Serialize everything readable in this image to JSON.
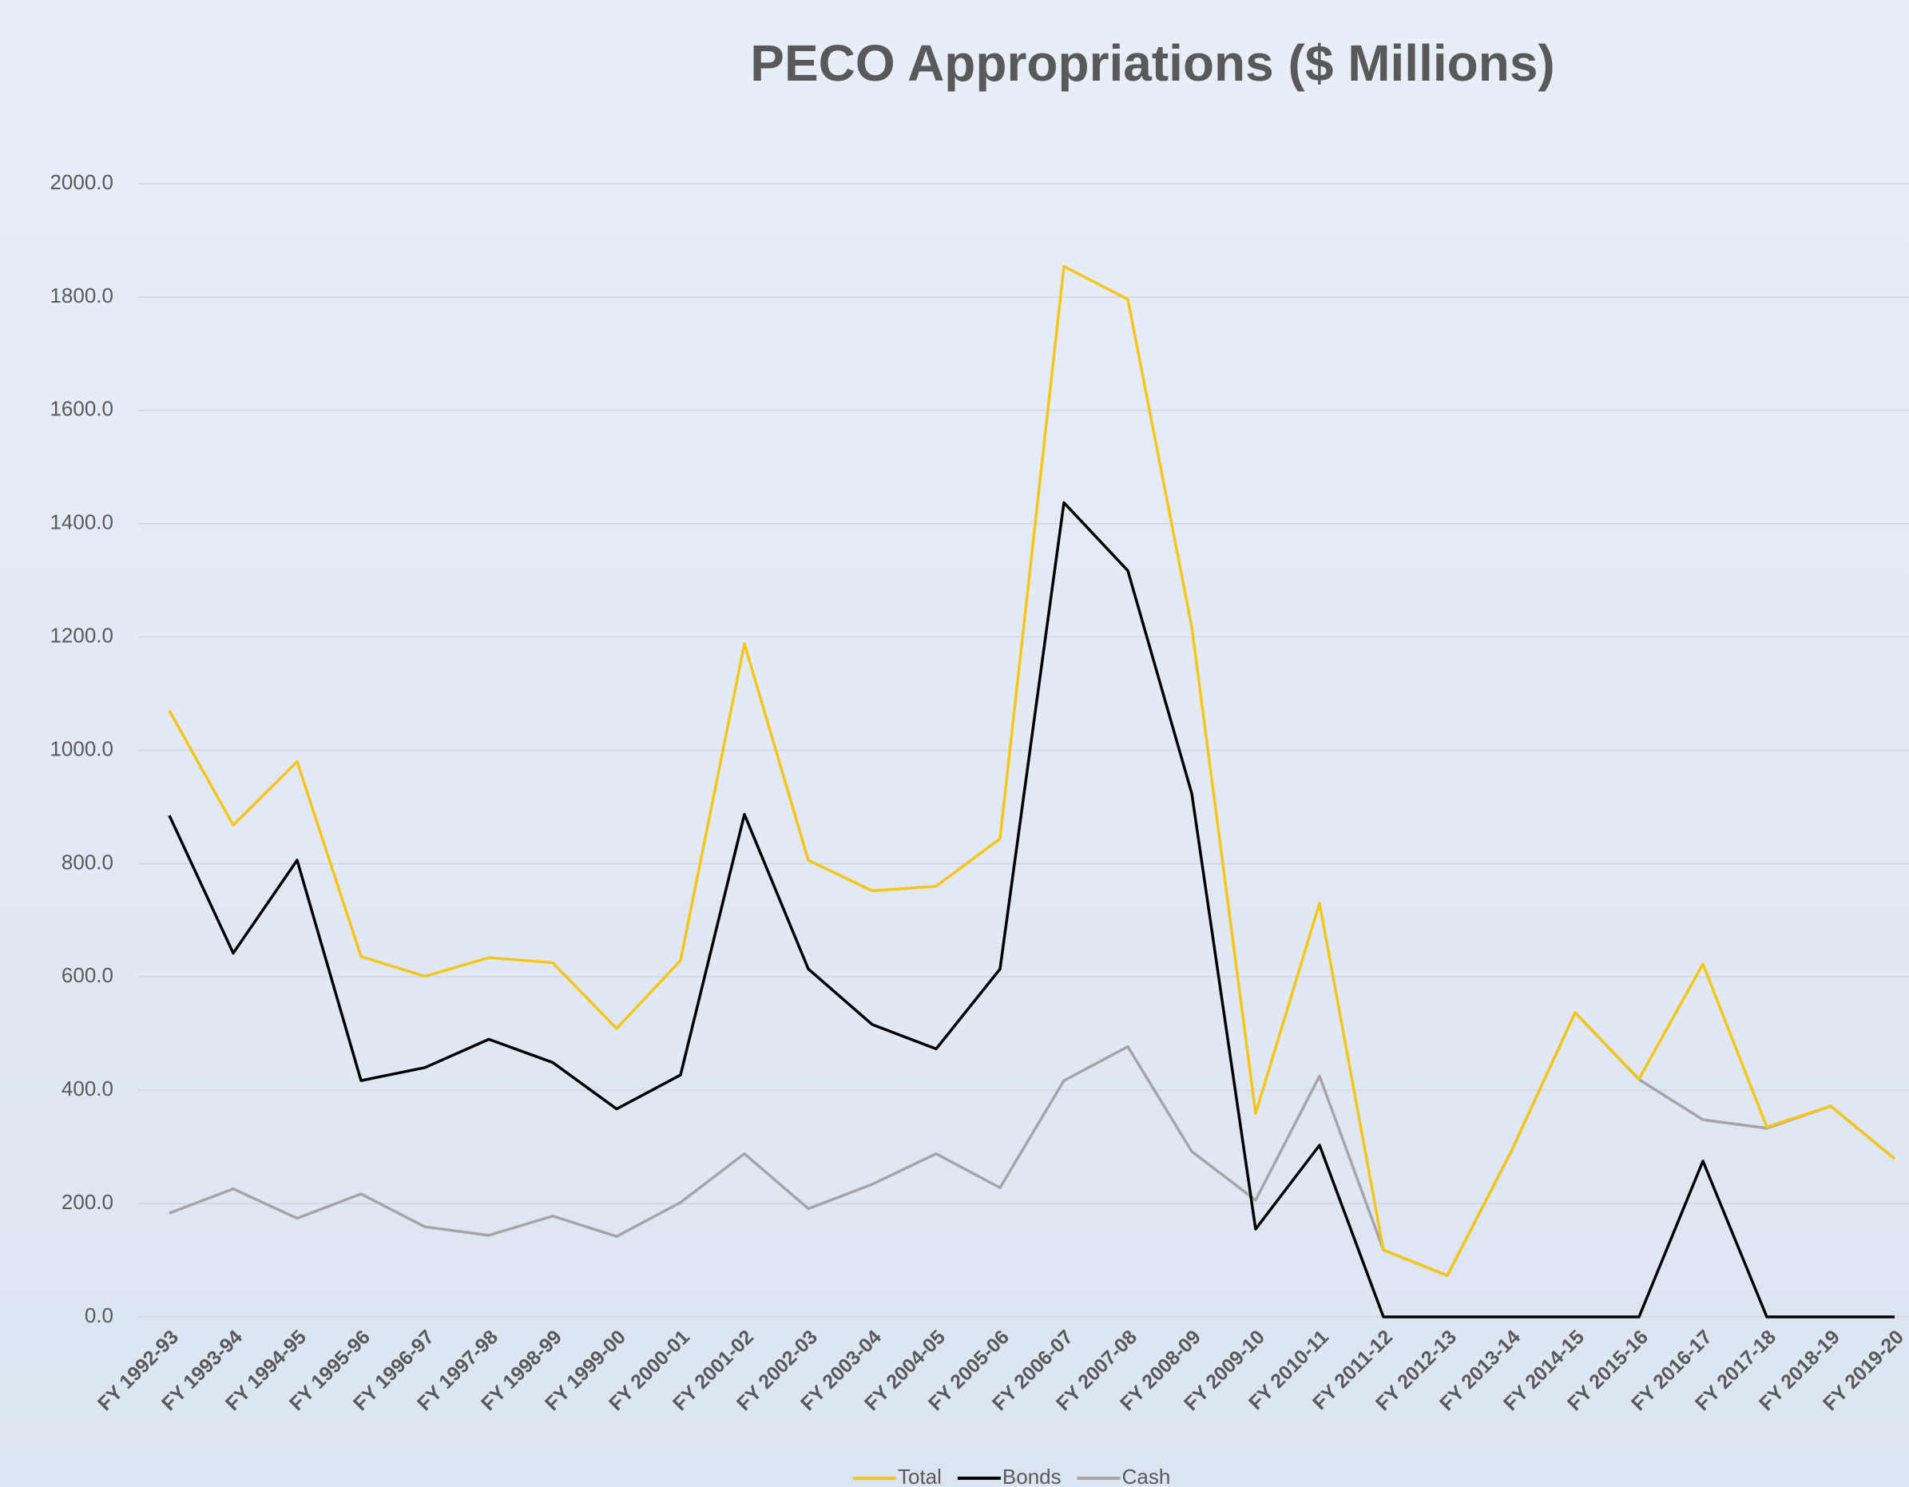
{
  "chart_data": {
    "type": "line",
    "title": "PECO Appropriations ($ Millions)",
    "categories": [
      "FY 1992-93",
      "FY 1993-94",
      "FY 1994-95",
      "FY 1995-96",
      "FY 1996-97",
      "FY 1997-98",
      "FY 1998-99",
      "FY 1999-00",
      "FY 2000-01",
      "FY 2001-02",
      "FY 2002-03",
      "FY 2003-04",
      "FY 2004-05",
      "FY 2005-06",
      "FY 2006-07",
      "FY 2007-08",
      "FY 2008-09",
      "FY 2009-10",
      "FY 2010-11",
      "FY 2011-12",
      "FY 2012-13",
      "FY 2013-14",
      "FY 2014-15",
      "FY 2015-16",
      "FY 2016-17",
      "FY 2017-18",
      "FY 2018-19",
      "FY 2019-20"
    ],
    "series": [
      {
        "name": "Total",
        "color": "#f5c518",
        "values": [
          1070,
          868,
          980,
          636,
          601,
          634,
          625,
          509,
          629,
          1188,
          806,
          752,
          760,
          844,
          1854,
          1796,
          1218,
          359,
          730,
          118,
          73,
          292,
          537,
          420,
          623,
          335,
          372,
          279
        ]
      },
      {
        "name": "Bonds",
        "color": "#000000",
        "values": [
          885,
          642,
          806,
          417,
          440,
          490,
          449,
          367,
          427,
          887,
          614,
          516,
          473,
          614,
          1437,
          1317,
          924,
          155,
          303,
          0,
          0,
          0,
          0,
          0,
          275,
          0,
          0,
          0
        ]
      },
      {
        "name": "Cash",
        "color": "#a5a5a5",
        "values": [
          183,
          226,
          174,
          217,
          159,
          144,
          178,
          142,
          202,
          288,
          191,
          234,
          288,
          228,
          417,
          477,
          292,
          206,
          425,
          118,
          73,
          292,
          537,
          419,
          348,
          333,
          372,
          279
        ]
      }
    ],
    "ylim": [
      0,
      2000
    ],
    "yticks": [
      {
        "value": 0,
        "label": "0.0"
      },
      {
        "value": 200,
        "label": "200.0"
      },
      {
        "value": 400,
        "label": "400.0"
      },
      {
        "value": 600,
        "label": "600.0"
      },
      {
        "value": 800,
        "label": "800.0"
      },
      {
        "value": 1000,
        "label": "1000.0"
      },
      {
        "value": 1200,
        "label": "1200.0"
      },
      {
        "value": 1400,
        "label": "1400.0"
      },
      {
        "value": 1600,
        "label": "1600.0"
      },
      {
        "value": 1800,
        "label": "1800.0"
      },
      {
        "value": 2000,
        "label": "2000.0"
      }
    ],
    "grid": true,
    "legend": "bottom"
  }
}
